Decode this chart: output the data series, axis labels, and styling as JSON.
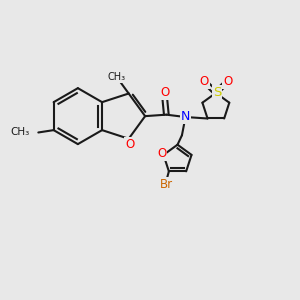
{
  "background_color": "#e8e8e8",
  "bond_color": "#1a1a1a",
  "atom_colors": {
    "O": "#ff0000",
    "N": "#0000ff",
    "S": "#cccc00",
    "Br": "#cc6600",
    "C": "#1a1a1a"
  },
  "figsize": [
    3.0,
    3.0
  ],
  "dpi": 100
}
